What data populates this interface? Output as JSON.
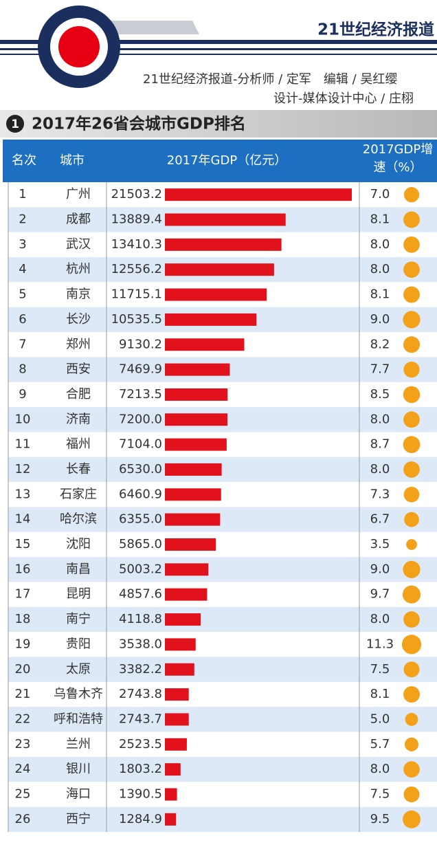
{
  "header": {
    "brand": "21世纪经济报道",
    "credit_1": "21世纪经济报道-分析师 / 定军　编辑 / 吴红缨",
    "credit_2": "设计-媒体设计中心 / 庄栩"
  },
  "chart_data": {
    "type": "bar",
    "section": 1,
    "title": "2017年26省会城市GDP排名",
    "columns": [
      "名次",
      "城市"
    ],
    "ranks": [
      1,
      2,
      3,
      4,
      5,
      6,
      7,
      8,
      9,
      10,
      11,
      12,
      13,
      14,
      15,
      16,
      17,
      18,
      19,
      20,
      21,
      22,
      23,
      24,
      25,
      26
    ],
    "categories": [
      "广州",
      "成都",
      "武汉",
      "杭州",
      "南京",
      "长沙",
      "郑州",
      "西安",
      "合肥",
      "济南",
      "福州",
      "长春",
      "石家庄",
      "哈尔滨",
      "沈阳",
      "南昌",
      "昆明",
      "南宁",
      "贵阳",
      "太原",
      "乌鲁木齐",
      "呼和浩特",
      "兰州",
      "银川",
      "海口",
      "西宁"
    ],
    "series": [
      {
        "name": "2017年GDP（亿元）",
        "color": "#e2121c",
        "values": [
          21503.2,
          13889.4,
          13410.3,
          12556.2,
          11715.1,
          10535.5,
          9130.2,
          7469.9,
          7213.5,
          7200.0,
          7104.0,
          6530.0,
          6460.9,
          6355.0,
          5865.0,
          5003.2,
          4857.6,
          4118.8,
          3538.0,
          3382.2,
          2743.8,
          2743.7,
          2523.5,
          1803.2,
          1390.5,
          1284.9
        ],
        "value_labels": [
          "21503.2",
          "13889.4",
          "13410.3",
          "12556.2",
          "11715.1",
          "10535.5",
          "9130.2",
          "7469.9",
          "7213.5",
          "7200.0",
          "7104.0",
          "6530.0",
          "6460.9",
          "6355.0",
          "5865.0",
          "5003.2",
          "4857.6",
          "4118.8",
          "3538.0",
          "3382.2",
          "2743.8",
          "2743.7",
          "2523.5",
          "1803.2",
          "1390.5",
          "1284.9"
        ]
      },
      {
        "name": "2017GDP增速（%）",
        "color": "#f4a11a",
        "values": [
          7.0,
          8.1,
          8.0,
          8.0,
          8.1,
          9.0,
          8.2,
          7.7,
          8.5,
          8.0,
          8.7,
          8.0,
          7.3,
          6.7,
          3.5,
          9.0,
          9.7,
          8.0,
          11.3,
          7.5,
          8.1,
          5.0,
          5.7,
          8.0,
          7.5,
          9.5
        ],
        "value_labels": [
          "7.0",
          "8.1",
          "8.0",
          "8.0",
          "8.1",
          "9.0",
          "8.2",
          "7.7",
          "8.5",
          "8.0",
          "8.7",
          "8.0",
          "7.3",
          "6.7",
          "3.5",
          "9.0",
          "9.7",
          "8.0",
          "11.3",
          "7.5",
          "8.1",
          "5.0",
          "5.7",
          "8.0",
          "7.5",
          "9.5"
        ]
      }
    ]
  }
}
